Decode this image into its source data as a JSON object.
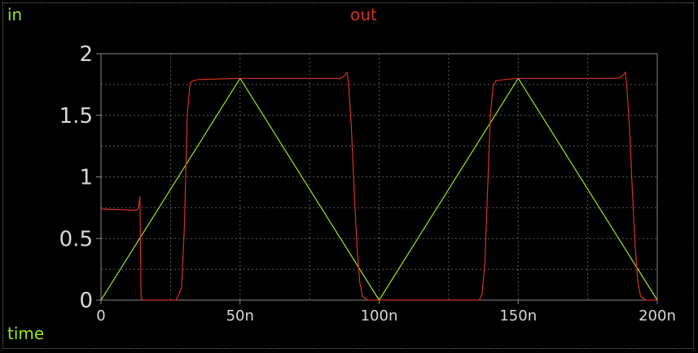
{
  "labels": {
    "top_left": "in",
    "top_center": "out",
    "bottom_left": "time"
  },
  "colors": {
    "in": "#9be51a",
    "out": "#d4321f",
    "background": "#000000",
    "grid": "#5a5a5a",
    "tick_text": "#d8d8d8"
  },
  "chart_data": {
    "type": "line",
    "xlabel": "time",
    "xlim": [
      0,
      200
    ],
    "ylim": [
      0,
      2
    ],
    "grid": true,
    "x_ticks": [
      0,
      50,
      100,
      150,
      200
    ],
    "x_tick_labels": [
      "0",
      "50n",
      "100n",
      "150n",
      "200n"
    ],
    "y_ticks": [
      0,
      0.5,
      1,
      1.5,
      2
    ],
    "y_tick_labels": [
      "0",
      "0.5",
      "1",
      "1.5",
      "2"
    ],
    "series": [
      {
        "name": "in",
        "color": "#9be51a",
        "x": [
          0,
          50,
          100,
          150,
          200
        ],
        "y": [
          0,
          1.8,
          0,
          1.8,
          0
        ]
      },
      {
        "name": "out",
        "color": "#d4321f",
        "x": [
          0,
          12,
          13,
          13.5,
          14,
          14.2,
          14.4,
          15,
          27,
          29,
          30,
          31,
          32,
          33,
          35,
          50,
          86,
          87.5,
          88.5,
          89,
          90,
          91,
          92,
          93,
          94,
          96,
          136,
          137,
          138,
          139,
          140,
          141,
          142,
          145,
          150,
          186,
          187.5,
          188.5,
          189,
          190,
          191,
          192,
          193,
          194,
          196,
          200
        ],
        "y": [
          0.74,
          0.73,
          0.73,
          0.76,
          0.84,
          0.4,
          0.02,
          0,
          0,
          0.1,
          0.6,
          1.5,
          1.76,
          1.78,
          1.79,
          1.8,
          1.8,
          1.82,
          1.85,
          1.76,
          1.4,
          0.9,
          0.45,
          0.15,
          0.03,
          0,
          0,
          0.05,
          0.3,
          0.9,
          1.5,
          1.74,
          1.78,
          1.79,
          1.8,
          1.8,
          1.82,
          1.85,
          1.76,
          1.4,
          0.9,
          0.45,
          0.15,
          0.03,
          0,
          0
        ]
      }
    ]
  }
}
